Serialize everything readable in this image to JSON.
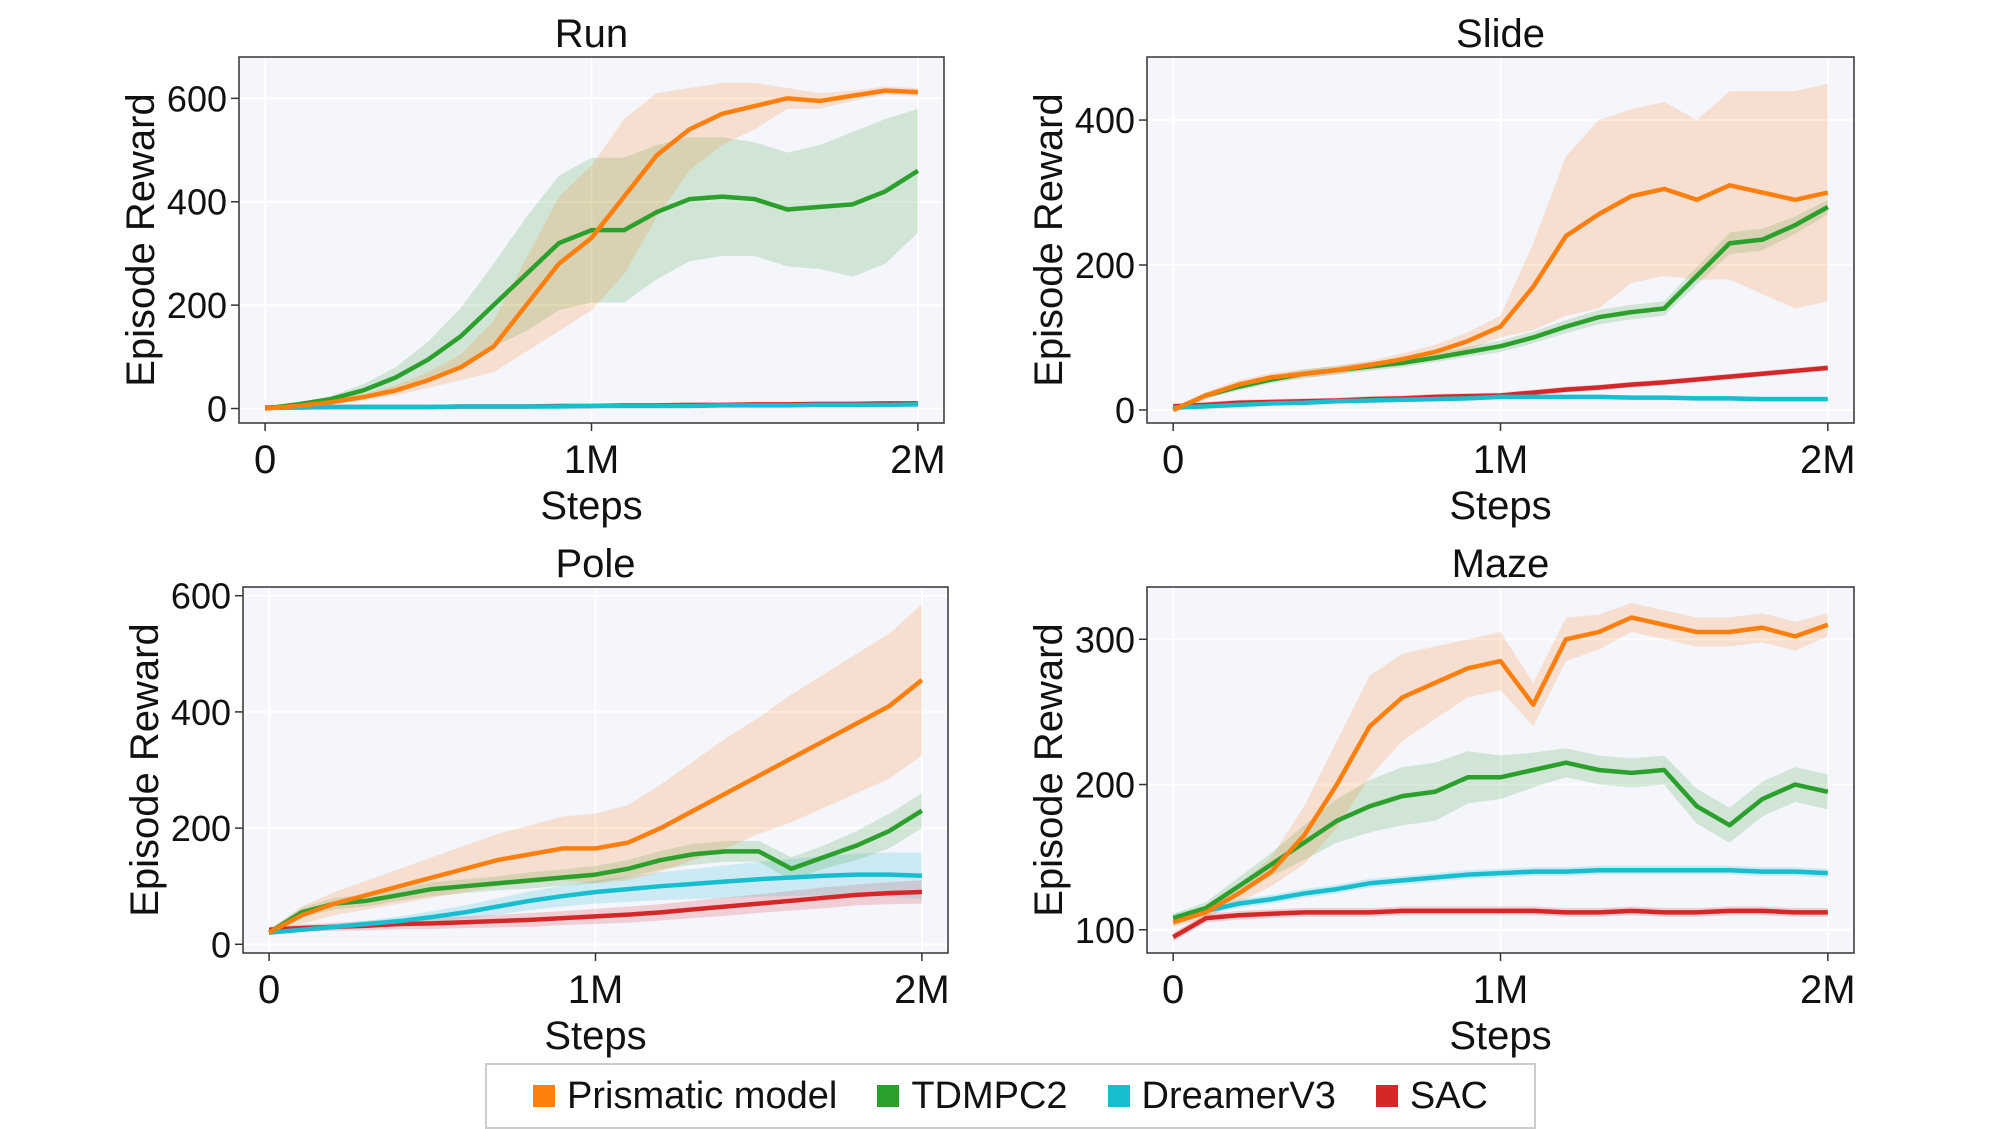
{
  "legend": [
    {
      "name": "Prismatic model",
      "color": "#ff7f0e"
    },
    {
      "name": "TDMPC2",
      "color": "#2ca02c"
    },
    {
      "name": "DreamerV3",
      "color": "#17becf"
    },
    {
      "name": "SAC",
      "color": "#d62728"
    }
  ],
  "chart_data": [
    {
      "type": "line",
      "title": "Run",
      "xlabel": "Steps",
      "ylabel": "Episode Reward",
      "xlim": [
        -80000,
        2080000
      ],
      "ylim": [
        -28,
        680
      ],
      "xticks": [
        0,
        1000000,
        2000000
      ],
      "xtick_labels": [
        "0",
        "1M",
        "2M"
      ],
      "yticks": [
        0,
        200,
        400,
        600
      ],
      "ytick_labels": [
        "0",
        "200",
        "400",
        "600"
      ],
      "grid": true,
      "x": [
        0,
        100000,
        200000,
        300000,
        400000,
        500000,
        600000,
        700000,
        800000,
        900000,
        1000000,
        1100000,
        1200000,
        1300000,
        1400000,
        1500000,
        1600000,
        1700000,
        1800000,
        1900000,
        2000000
      ],
      "series": [
        {
          "name": "Prismatic model",
          "values": [
            0,
            5,
            12,
            22,
            35,
            55,
            80,
            120,
            200,
            280,
            330,
            410,
            490,
            540,
            570,
            585,
            600,
            595,
            605,
            615,
            612
          ],
          "band": [
            0,
            2,
            4,
            6,
            10,
            15,
            25,
            50,
            90,
            130,
            140,
            150,
            120,
            80,
            60,
            45,
            20,
            15,
            10,
            8,
            8
          ]
        },
        {
          "name": "TDMPC2",
          "values": [
            0,
            8,
            18,
            35,
            60,
            95,
            140,
            200,
            260,
            320,
            345,
            345,
            380,
            405,
            410,
            405,
            385,
            390,
            395,
            420,
            460
          ],
          "band": [
            0,
            3,
            6,
            12,
            20,
            35,
            55,
            80,
            110,
            130,
            140,
            140,
            130,
            120,
            115,
            110,
            110,
            120,
            140,
            140,
            120
          ]
        },
        {
          "name": "DreamerV3",
          "values": [
            2,
            2,
            3,
            3,
            3,
            3,
            4,
            4,
            4,
            4,
            5,
            5,
            5,
            5,
            6,
            6,
            6,
            7,
            7,
            7,
            8
          ],
          "band": 2
        },
        {
          "name": "SAC",
          "values": [
            2,
            2,
            3,
            3,
            3,
            3,
            4,
            4,
            4,
            5,
            5,
            6,
            6,
            7,
            7,
            8,
            8,
            9,
            9,
            10,
            10
          ],
          "band": 2
        }
      ]
    },
    {
      "type": "line",
      "title": "Slide",
      "xlabel": "Steps",
      "ylabel": "Episode Reward",
      "xlim": [
        -80000,
        2080000
      ],
      "ylim": [
        -18,
        487
      ],
      "xticks": [
        0,
        1000000,
        2000000
      ],
      "xtick_labels": [
        "0",
        "1M",
        "2M"
      ],
      "yticks": [
        0,
        200,
        400
      ],
      "ytick_labels": [
        "0",
        "200",
        "400"
      ],
      "grid": true,
      "x": [
        0,
        100000,
        200000,
        300000,
        400000,
        500000,
        600000,
        700000,
        800000,
        900000,
        1000000,
        1100000,
        1200000,
        1300000,
        1400000,
        1500000,
        1600000,
        1700000,
        1800000,
        1900000,
        2000000
      ],
      "series": [
        {
          "name": "Prismatic model",
          "values": [
            0,
            20,
            35,
            45,
            50,
            55,
            62,
            70,
            80,
            95,
            115,
            170,
            240,
            270,
            295,
            305,
            290,
            310,
            300,
            290,
            300
          ],
          "band": [
            2,
            5,
            6,
            6,
            6,
            6,
            6,
            8,
            10,
            12,
            15,
            60,
            110,
            130,
            120,
            120,
            110,
            130,
            140,
            150,
            150
          ]
        },
        {
          "name": "TDMPC2",
          "values": [
            0,
            20,
            32,
            42,
            50,
            55,
            60,
            65,
            72,
            80,
            88,
            100,
            115,
            128,
            135,
            140,
            185,
            230,
            235,
            255,
            280
          ],
          "band": [
            2,
            4,
            5,
            5,
            6,
            6,
            6,
            6,
            6,
            7,
            8,
            8,
            9,
            10,
            10,
            10,
            12,
            15,
            15,
            12,
            10
          ]
        },
        {
          "name": "DreamerV3",
          "values": [
            3,
            5,
            7,
            9,
            10,
            12,
            13,
            14,
            15,
            16,
            18,
            18,
            18,
            18,
            17,
            17,
            16,
            16,
            15,
            15,
            15
          ],
          "band": 3
        },
        {
          "name": "SAC",
          "values": [
            5,
            7,
            10,
            11,
            12,
            13,
            15,
            16,
            18,
            19,
            20,
            24,
            28,
            31,
            35,
            38,
            42,
            46,
            50,
            54,
            58
          ],
          "band": 4
        }
      ]
    },
    {
      "type": "line",
      "title": "Pole",
      "xlabel": "Steps",
      "ylabel": "Episode Reward",
      "xlim": [
        -80000,
        2080000
      ],
      "ylim": [
        -15,
        615
      ],
      "xticks": [
        0,
        1000000,
        2000000
      ],
      "xtick_labels": [
        "0",
        "1M",
        "2M"
      ],
      "yticks": [
        0,
        200,
        400,
        600
      ],
      "ytick_labels": [
        "0",
        "200",
        "400",
        "600"
      ],
      "grid": true,
      "x": [
        0,
        100000,
        200000,
        300000,
        400000,
        500000,
        600000,
        700000,
        800000,
        900000,
        1000000,
        1100000,
        1200000,
        1300000,
        1400000,
        1500000,
        1600000,
        1700000,
        1800000,
        1900000,
        2000000
      ],
      "series": [
        {
          "name": "Prismatic model",
          "values": [
            20,
            50,
            70,
            85,
            100,
            115,
            130,
            145,
            155,
            165,
            165,
            175,
            200,
            230,
            260,
            290,
            320,
            350,
            380,
            410,
            455
          ],
          "band": [
            5,
            15,
            20,
            25,
            30,
            35,
            40,
            45,
            50,
            55,
            60,
            65,
            75,
            85,
            95,
            100,
            110,
            115,
            120,
            125,
            130
          ]
        },
        {
          "name": "TDMPC2",
          "values": [
            20,
            55,
            70,
            75,
            85,
            95,
            100,
            105,
            110,
            115,
            120,
            130,
            145,
            155,
            160,
            160,
            130,
            150,
            170,
            195,
            230
          ],
          "band": [
            5,
            8,
            10,
            10,
            10,
            12,
            12,
            12,
            14,
            14,
            15,
            15,
            16,
            18,
            18,
            18,
            20,
            20,
            25,
            30,
            30
          ]
        },
        {
          "name": "DreamerV3",
          "values": [
            20,
            25,
            30,
            35,
            40,
            47,
            55,
            65,
            75,
            83,
            90,
            95,
            100,
            104,
            108,
            112,
            115,
            118,
            120,
            120,
            118
          ],
          "band": [
            3,
            4,
            5,
            6,
            8,
            10,
            12,
            14,
            16,
            18,
            20,
            22,
            24,
            26,
            28,
            30,
            32,
            34,
            36,
            38,
            40
          ]
        },
        {
          "name": "SAC",
          "values": [
            25,
            28,
            30,
            32,
            35,
            36,
            38,
            40,
            42,
            45,
            48,
            51,
            55,
            60,
            65,
            70,
            75,
            80,
            85,
            88,
            90
          ],
          "band": [
            5,
            6,
            7,
            8,
            9,
            10,
            10,
            11,
            12,
            12,
            13,
            14,
            14,
            15,
            16,
            16,
            17,
            18,
            18,
            19,
            20
          ]
        }
      ]
    },
    {
      "type": "line",
      "title": "Maze",
      "xlabel": "Steps",
      "ylabel": "Episode Reward",
      "xlim": [
        -80000,
        2080000
      ],
      "ylim": [
        84,
        336
      ],
      "xticks": [
        0,
        1000000,
        2000000
      ],
      "xtick_labels": [
        "0",
        "1M",
        "2M"
      ],
      "yticks": [
        100,
        200,
        300
      ],
      "ytick_labels": [
        "100",
        "200",
        "300"
      ],
      "grid": true,
      "x": [
        0,
        100000,
        200000,
        300000,
        400000,
        500000,
        600000,
        700000,
        800000,
        900000,
        1000000,
        1100000,
        1200000,
        1300000,
        1400000,
        1500000,
        1600000,
        1700000,
        1800000,
        1900000,
        2000000
      ],
      "series": [
        {
          "name": "Prismatic model",
          "values": [
            105,
            112,
            125,
            140,
            165,
            200,
            240,
            260,
            270,
            280,
            285,
            255,
            300,
            305,
            315,
            310,
            305,
            305,
            308,
            302,
            310
          ],
          "band": [
            3,
            4,
            6,
            10,
            20,
            30,
            35,
            30,
            25,
            20,
            20,
            15,
            15,
            12,
            10,
            10,
            10,
            10,
            10,
            10,
            8
          ]
        },
        {
          "name": "TDMPC2",
          "values": [
            108,
            115,
            130,
            145,
            160,
            175,
            185,
            192,
            195,
            205,
            205,
            210,
            215,
            210,
            208,
            210,
            185,
            172,
            190,
            200,
            195
          ],
          "band": [
            3,
            4,
            6,
            8,
            12,
            15,
            18,
            20,
            20,
            18,
            15,
            12,
            10,
            10,
            10,
            10,
            12,
            12,
            12,
            12,
            12
          ]
        },
        {
          "name": "DreamerV3",
          "values": [
            108,
            113,
            118,
            121,
            125,
            128,
            132,
            134,
            136,
            138,
            139,
            140,
            140,
            141,
            141,
            141,
            141,
            141,
            140,
            140,
            139
          ],
          "band": 3
        },
        {
          "name": "SAC",
          "values": [
            95,
            108,
            110,
            111,
            112,
            112,
            112,
            113,
            113,
            113,
            113,
            113,
            112,
            112,
            113,
            112,
            112,
            113,
            113,
            112,
            112
          ],
          "band": 3
        }
      ]
    }
  ]
}
